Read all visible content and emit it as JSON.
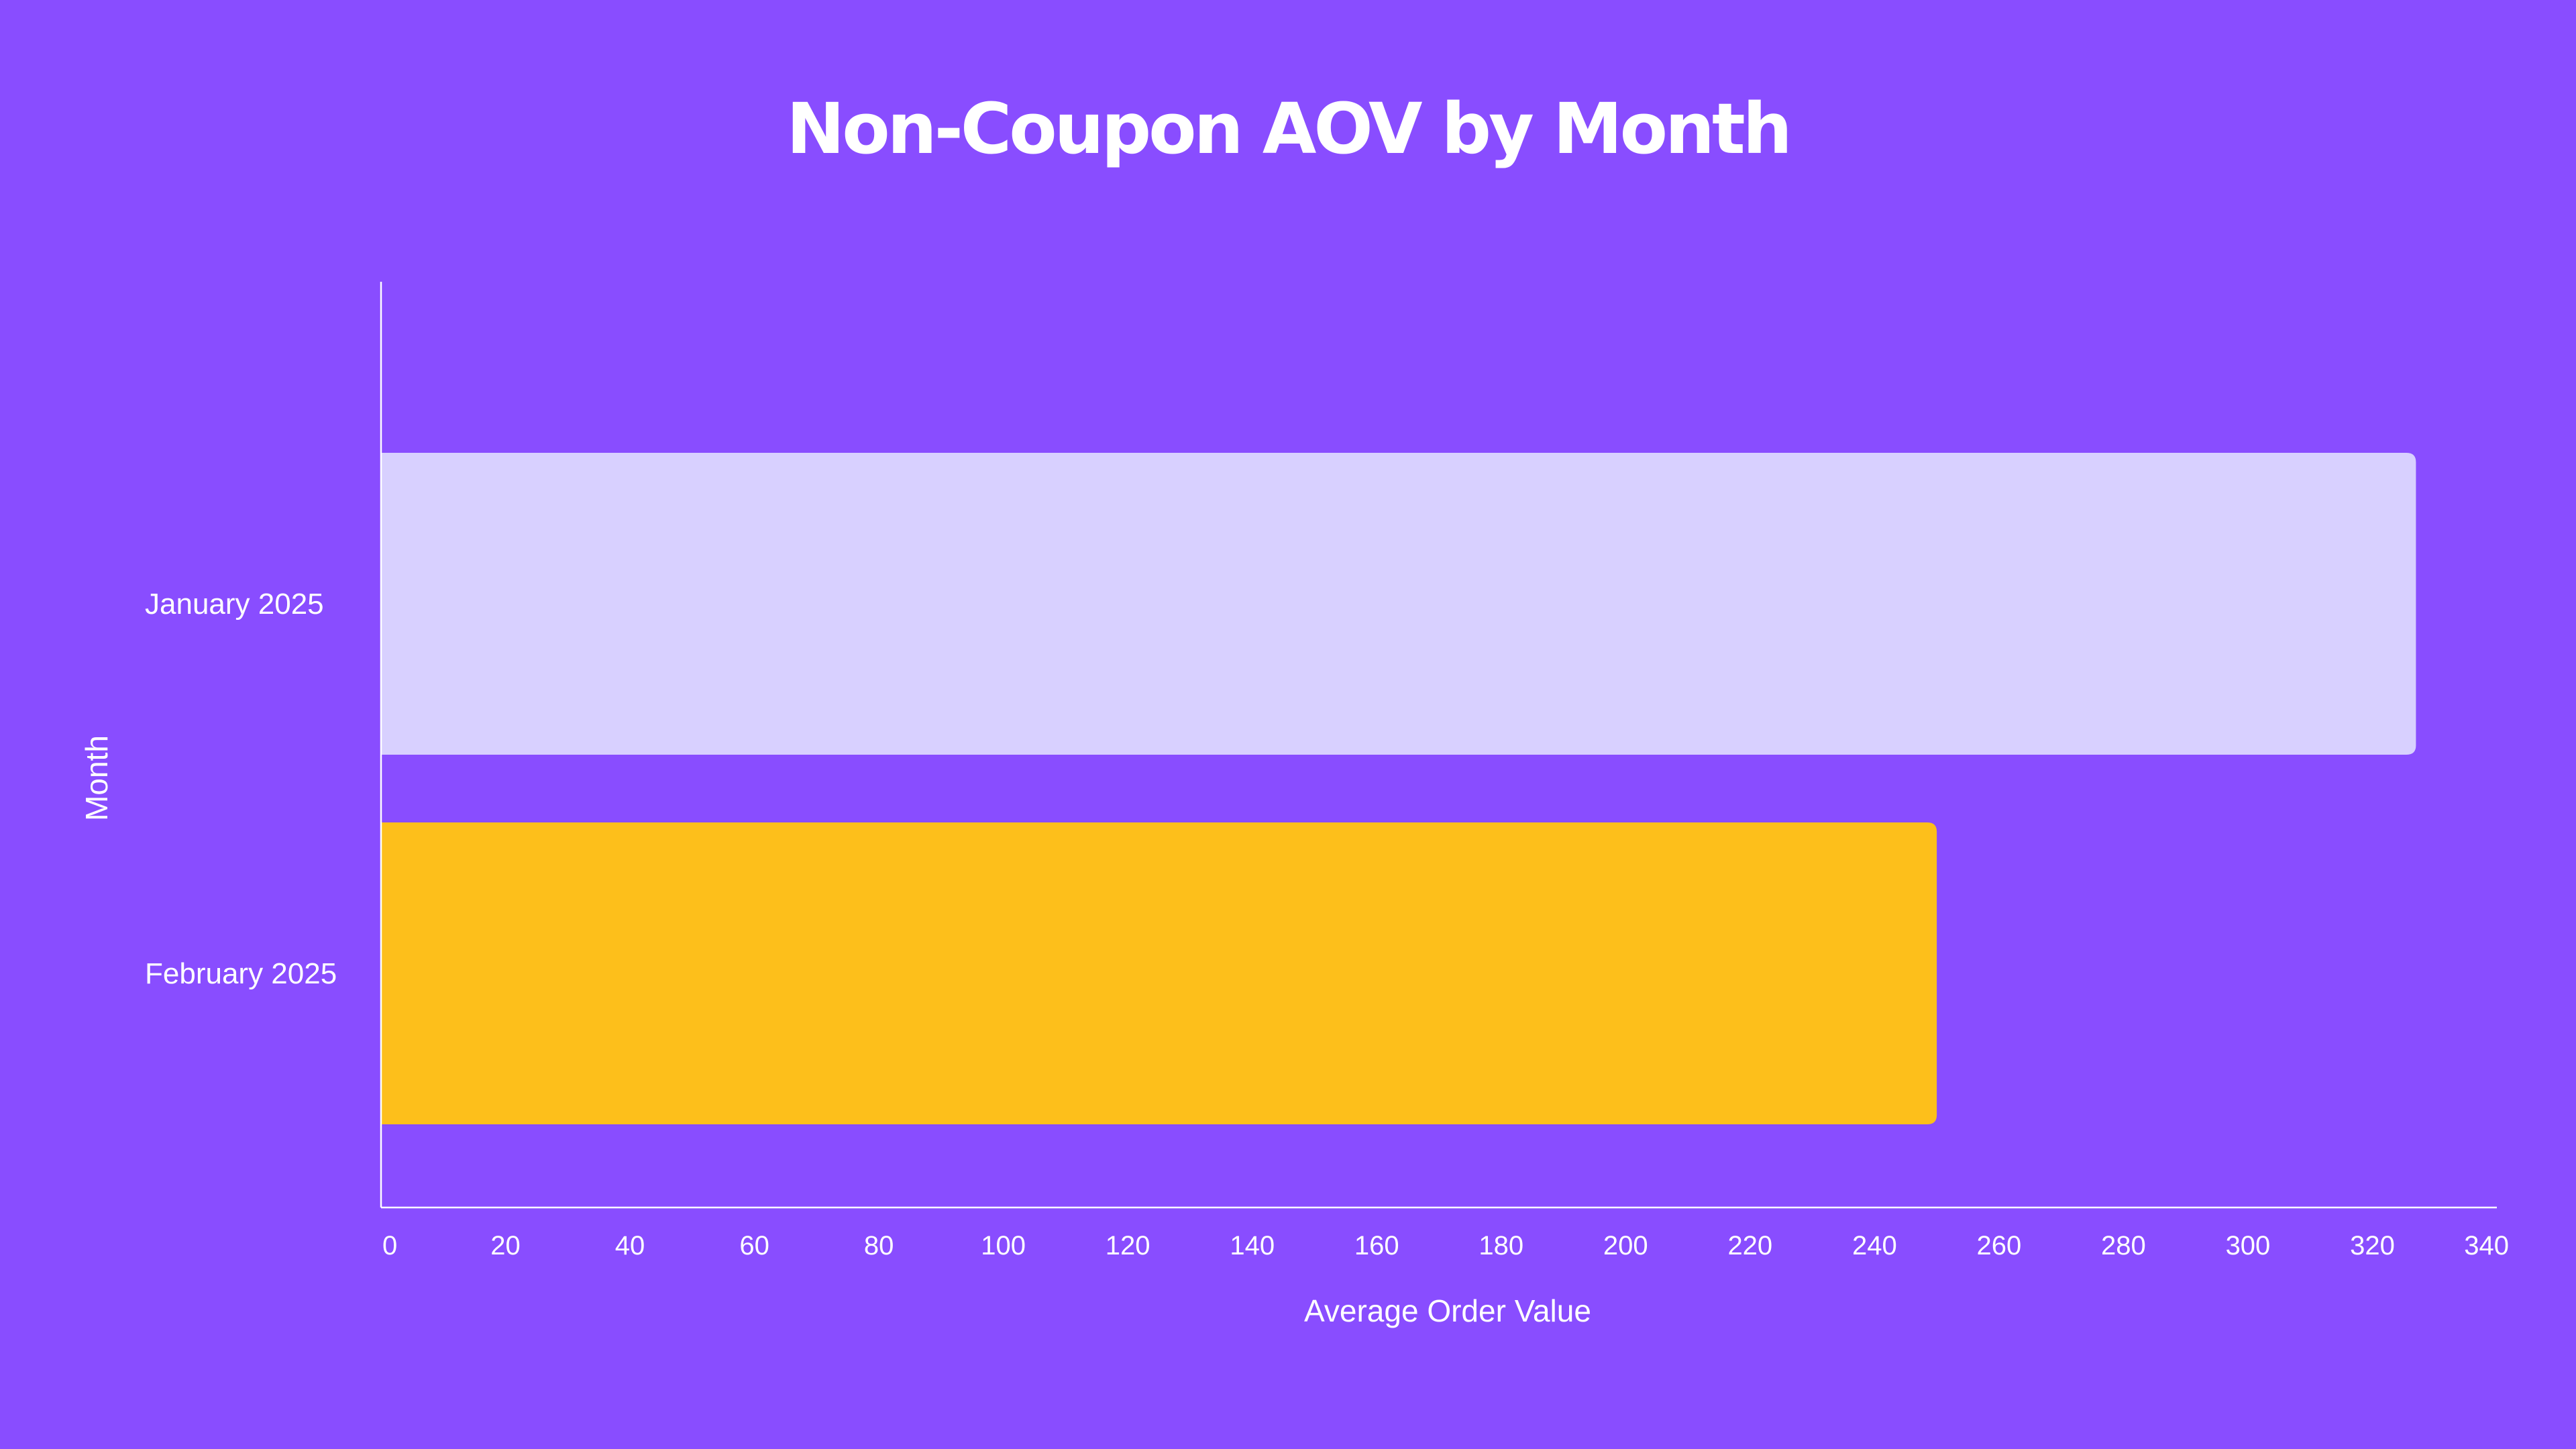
{
  "chart_data": {
    "type": "bar",
    "orientation": "horizontal",
    "title": "Non-Coupon AOV by Month",
    "xlabel": "Average Order Value",
    "ylabel": "Month",
    "categories": [
      "January 2025",
      "February 2025"
    ],
    "values": [
      327,
      250
    ],
    "bar_colors": [
      "#d8d0ff",
      "#fdbf1b"
    ],
    "xlim": [
      0,
      340
    ],
    "xticks": [
      0,
      20,
      40,
      60,
      80,
      100,
      120,
      140,
      160,
      180,
      200,
      220,
      240,
      260,
      280,
      300,
      320,
      340
    ],
    "grid": false,
    "legend": "none"
  },
  "colors": {
    "background": "#894dff",
    "text": "#ffffff",
    "axis": "#ffffff"
  }
}
